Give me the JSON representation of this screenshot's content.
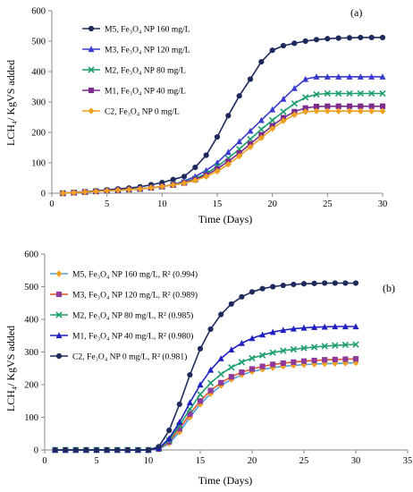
{
  "chart_data": [
    {
      "type": "line",
      "panel_label": "(a)",
      "xlabel": "Time (Days)",
      "ylabel": "LCH₄/ KgVS added",
      "xlim": [
        0,
        30
      ],
      "ylim": [
        0,
        600
      ],
      "xticks": [
        0,
        5,
        10,
        15,
        20,
        25,
        30
      ],
      "yticks": [
        0,
        100,
        200,
        300,
        400,
        500,
        600
      ],
      "grid": false,
      "legend_position": "top-left",
      "x": [
        1,
        2,
        3,
        4,
        5,
        6,
        7,
        8,
        9,
        10,
        11,
        12,
        13,
        14,
        15,
        16,
        17,
        18,
        19,
        20,
        21,
        22,
        23,
        24,
        25,
        26,
        27,
        28,
        29,
        30
      ],
      "series": [
        {
          "name": "M5, Fe₃O₄ NP 160 mg/L",
          "color": "#1f2a5c",
          "marker": "circle",
          "values": [
            0,
            3,
            5,
            8,
            11,
            14,
            17,
            21,
            28,
            35,
            45,
            55,
            85,
            125,
            185,
            255,
            320,
            375,
            432,
            470,
            485,
            493,
            500,
            505,
            508,
            510,
            511,
            512,
            512,
            512
          ]
        },
        {
          "name": "M3, Fe₃O₄ NP 120 mg/L",
          "color": "#3a3ad0",
          "marker": "triangle",
          "values": [
            0,
            2,
            4,
            6,
            8,
            10,
            12,
            14,
            18,
            22,
            28,
            40,
            55,
            75,
            100,
            135,
            170,
            205,
            240,
            275,
            310,
            345,
            375,
            383,
            383,
            383,
            383,
            383,
            383,
            383
          ]
        },
        {
          "name": "M2, Fe₃O₄ NP 80 mg/L",
          "color": "#1e9e6e",
          "marker": "x",
          "values": [
            0,
            2,
            4,
            6,
            8,
            10,
            12,
            14,
            18,
            22,
            28,
            36,
            48,
            65,
            88,
            115,
            145,
            178,
            210,
            240,
            268,
            295,
            315,
            325,
            328,
            328,
            328,
            328,
            328,
            328
          ]
        },
        {
          "name": "M1, Fe₃O₄ NP 40 mg/L",
          "color": "#7b2d8e",
          "marker": "square",
          "values": [
            0,
            2,
            4,
            6,
            8,
            10,
            12,
            14,
            18,
            22,
            27,
            34,
            45,
            60,
            80,
            105,
            132,
            162,
            192,
            222,
            248,
            268,
            280,
            285,
            286,
            286,
            286,
            286,
            286,
            286
          ]
        },
        {
          "name": "C2, Fe₃O₄ NP 0 mg/L",
          "color": "#f0a020",
          "marker": "diamond",
          "values": [
            0,
            2,
            4,
            6,
            8,
            10,
            12,
            14,
            18,
            22,
            27,
            33,
            42,
            55,
            72,
            95,
            122,
            152,
            182,
            212,
            238,
            258,
            268,
            270,
            270,
            270,
            270,
            270,
            270,
            270
          ]
        }
      ]
    },
    {
      "type": "line",
      "panel_label": "(b)",
      "xlabel": "Time (Days)",
      "ylabel": "LCH₄/ KgVS added",
      "xlim": [
        0,
        35
      ],
      "ylim": [
        0,
        600
      ],
      "xticks": [
        0,
        5,
        10,
        15,
        20,
        25,
        30,
        35
      ],
      "yticks": [
        0,
        100,
        200,
        300,
        400,
        500,
        600
      ],
      "grid": false,
      "legend_position": "top-left",
      "x": [
        1,
        2,
        3,
        4,
        5,
        6,
        7,
        8,
        9,
        10,
        11,
        12,
        13,
        14,
        15,
        16,
        17,
        18,
        19,
        20,
        21,
        22,
        23,
        24,
        25,
        26,
        27,
        28,
        29,
        30
      ],
      "series": [
        {
          "name": "M5, Fe₃O₄ NP 160 mg/L, R² (0.994)",
          "color": "#f0a020",
          "line_color": "#4aa0e0",
          "marker": "diamond",
          "values": [
            0,
            0,
            0,
            0,
            0,
            0,
            0,
            0,
            0,
            0,
            2,
            20,
            55,
            100,
            140,
            172,
            197,
            216,
            230,
            240,
            247,
            252,
            256,
            259,
            261,
            263,
            264,
            265,
            266,
            267
          ]
        },
        {
          "name": "M3, Fe₃O₄ NP 120 mg/L, R² (0.989)",
          "color": "#8e3a9c",
          "line_color": "#e0552a",
          "marker": "square",
          "values": [
            0,
            0,
            0,
            0,
            0,
            0,
            0,
            0,
            0,
            0,
            3,
            25,
            65,
            110,
            150,
            182,
            206,
            224,
            238,
            248,
            256,
            262,
            266,
            269,
            272,
            274,
            276,
            277,
            278,
            279
          ]
        },
        {
          "name": "M2, Fe₃O₄ NP 80 mg/L, R² (0.985)",
          "color": "#1e9e6e",
          "line_color": "#1e9e6e",
          "marker": "x",
          "values": [
            0,
            0,
            0,
            0,
            0,
            0,
            0,
            0,
            0,
            0,
            4,
            30,
            75,
            125,
            170,
            205,
            232,
            253,
            269,
            281,
            290,
            298,
            304,
            308,
            312,
            315,
            318,
            320,
            322,
            323
          ]
        },
        {
          "name": "M1, Fe₃O₄ NP 40 mg/L, R² (0.980)",
          "color": "#2020c0",
          "line_color": "#2020c0",
          "marker": "triangle",
          "values": [
            0,
            0,
            0,
            0,
            0,
            0,
            0,
            0,
            0,
            0,
            5,
            35,
            85,
            145,
            200,
            245,
            280,
            307,
            327,
            342,
            353,
            361,
            367,
            371,
            374,
            376,
            377,
            378,
            378,
            378
          ]
        },
        {
          "name": "C2, Fe₃O₄ NP 0 mg/L, R² (0.981)",
          "color": "#1f2a5c",
          "line_color": "#1f2a5c",
          "marker": "circle",
          "values": [
            0,
            0,
            0,
            0,
            0,
            0,
            0,
            0,
            0,
            0,
            10,
            60,
            140,
            230,
            310,
            370,
            415,
            447,
            469,
            484,
            494,
            500,
            504,
            507,
            509,
            510,
            511,
            511,
            511,
            511
          ]
        }
      ]
    }
  ]
}
